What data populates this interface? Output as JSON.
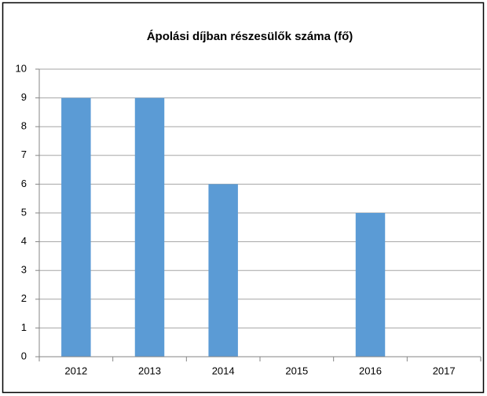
{
  "chart_data": {
    "type": "bar",
    "title": "Ápolási díjban részesülők száma (fő)",
    "categories": [
      "2012",
      "2013",
      "2014",
      "2015",
      "2016",
      "2017"
    ],
    "values": [
      9,
      9,
      6,
      0,
      5,
      0
    ],
    "color": "#5b9bd5",
    "ylim": [
      0,
      10
    ],
    "yticks": [
      0,
      1,
      2,
      3,
      4,
      5,
      6,
      7,
      8,
      9,
      10
    ],
    "grid": true
  }
}
